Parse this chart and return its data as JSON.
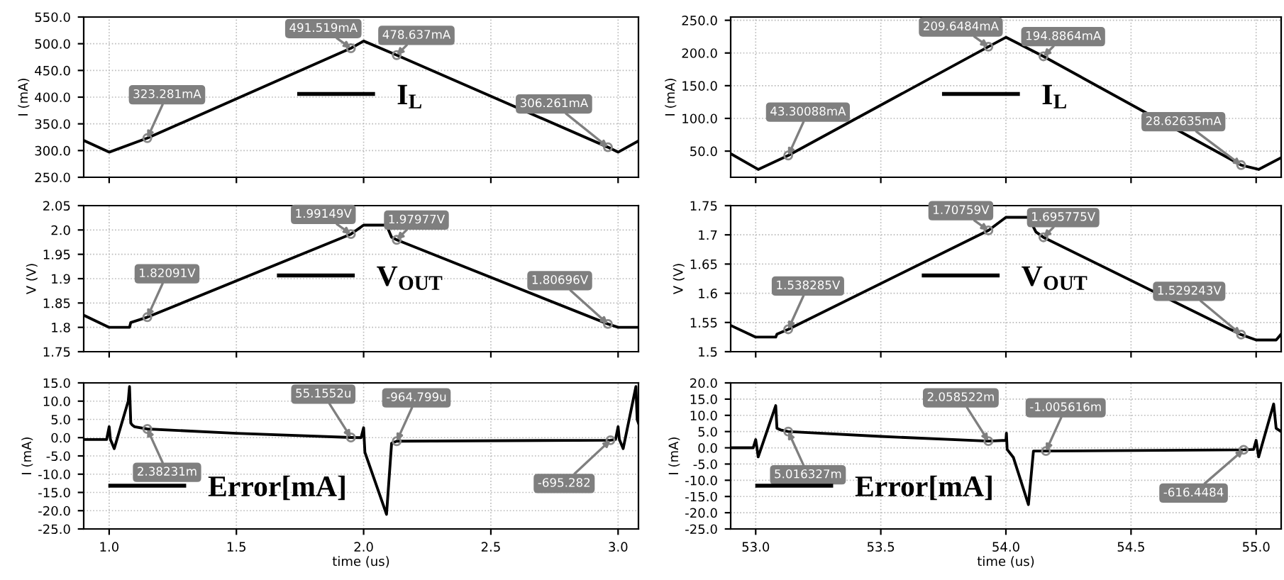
{
  "chart_data": [
    {
      "type": "line",
      "ylabel": "I (mA)",
      "legend": "center",
      "grid": true,
      "tick_labels": "y",
      "xlim": [
        0.9,
        3.08
      ],
      "xticks": [
        1.0,
        1.5,
        2.0,
        2.5,
        3.0
      ],
      "ylim": [
        250,
        550
      ],
      "yticks": [
        {
          "value": 250,
          "label": "250.0"
        },
        {
          "value": 300,
          "label": "300.0"
        },
        {
          "value": 350,
          "label": "350.0"
        },
        {
          "value": 400,
          "label": "400.0"
        },
        {
          "value": 450,
          "label": "450.0"
        },
        {
          "value": 500,
          "label": "500.0"
        },
        {
          "value": 550,
          "label": "550.0"
        }
      ],
      "x": [
        0.9,
        1.0,
        1.15,
        1.95,
        2.0,
        2.13,
        2.96,
        3.0,
        3.08
      ],
      "series": [
        {
          "name": "I$_{L}$",
          "color": "#000000",
          "values": [
            319,
            297,
            323.281,
            491.519,
            505,
            478.637,
            306.261,
            297,
            318
          ]
        }
      ],
      "annotations": [
        {
          "text": "323.281mA",
          "x": 1.15,
          "y": 323.281
        },
        {
          "text": "491.519mA",
          "x": 1.95,
          "y": 491.519
        },
        {
          "text": "478.637mA",
          "x": 2.13,
          "y": 478.637
        },
        {
          "text": "306.261mA",
          "x": 2.96,
          "y": 306.261
        }
      ]
    },
    {
      "type": "line",
      "ylabel": "I (mA)",
      "legend": "center",
      "grid": true,
      "tick_labels": "y",
      "xlim": [
        52.9,
        55.1
      ],
      "xticks": [
        53.0,
        53.5,
        54.0,
        54.5,
        55.0
      ],
      "ylim": [
        10,
        255
      ],
      "yticks": [
        {
          "value": 50,
          "label": "50.0"
        },
        {
          "value": 100,
          "label": "100.0"
        },
        {
          "value": 150,
          "label": "150.0"
        },
        {
          "value": 200,
          "label": "200.0"
        },
        {
          "value": 250,
          "label": "250.0"
        }
      ],
      "x": [
        52.9,
        53.01,
        53.13,
        53.93,
        54.0,
        54.15,
        54.94,
        55.01,
        55.1
      ],
      "series": [
        {
          "name": "I$_{L}$",
          "color": "#000000",
          "values": [
            46,
            22,
            43.30088,
            209.6484,
            224,
            194.8864,
            28.62635,
            22,
            40
          ]
        }
      ],
      "annotations": [
        {
          "text": "43.30088mA",
          "x": 53.13,
          "y": 43.30088
        },
        {
          "text": "209.6484mA",
          "x": 53.93,
          "y": 209.6484
        },
        {
          "text": "194.8864mA",
          "x": 54.15,
          "y": 194.8864
        },
        {
          "text": "28.62635mA",
          "x": 54.94,
          "y": 28.62635
        }
      ]
    },
    {
      "type": "line",
      "ylabel": "V (V)",
      "legend": "center",
      "grid": true,
      "tick_labels": "y",
      "xlim": [
        0.9,
        3.08
      ],
      "xticks": [
        1.0,
        1.5,
        2.0,
        2.5,
        3.0
      ],
      "ylim": [
        1.75,
        2.05
      ],
      "yticks": [
        1.75,
        1.8,
        1.85,
        1.9,
        1.95,
        {
          "value": 2.0,
          "label": "2.0"
        },
        2.05
      ],
      "x": [
        0.9,
        1.0,
        1.08,
        1.085,
        1.15,
        1.95,
        2.0,
        2.09,
        2.11,
        2.13,
        2.96,
        3.0,
        3.08
      ],
      "series": [
        {
          "name": "V$_{OUT}$",
          "color": "#000000",
          "values": [
            1.825,
            1.8,
            1.8,
            1.81,
            1.82091,
            1.99149,
            2.01,
            2.01,
            1.985,
            1.97977,
            1.80696,
            1.8,
            1.8
          ]
        }
      ],
      "annotations": [
        {
          "text": "1.82091V",
          "x": 1.15,
          "y": 1.82091
        },
        {
          "text": "1.99149V",
          "x": 1.95,
          "y": 1.99149
        },
        {
          "text": "1.97977V",
          "x": 2.13,
          "y": 1.97977
        },
        {
          "text": "1.80696V",
          "x": 2.96,
          "y": 1.80696
        }
      ]
    },
    {
      "type": "line",
      "ylabel": "V (V)",
      "legend": "center",
      "grid": true,
      "tick_labels": "y",
      "xlim": [
        52.9,
        55.1
      ],
      "xticks": [
        53.0,
        53.5,
        54.0,
        54.5,
        55.0
      ],
      "ylim": [
        1.5,
        1.75
      ],
      "yticks": [
        1.5,
        1.55,
        1.6,
        1.65,
        1.7,
        1.75
      ],
      "x": [
        52.9,
        53.0,
        53.08,
        53.085,
        53.13,
        53.93,
        54.0,
        54.09,
        54.12,
        54.15,
        54.94,
        55.0,
        55.08,
        55.1
      ],
      "series": [
        {
          "name": "V$_{OUT}$",
          "color": "#000000",
          "values": [
            1.545,
            1.525,
            1.525,
            1.53,
            1.538285,
            1.70759,
            1.73,
            1.73,
            1.705,
            1.695775,
            1.529243,
            1.52,
            1.52,
            1.53
          ]
        }
      ],
      "annotations": [
        {
          "text": "1.538285V",
          "x": 53.13,
          "y": 1.538285
        },
        {
          "text": "1.70759V",
          "x": 53.93,
          "y": 1.70759
        },
        {
          "text": "1.695775V",
          "x": 54.15,
          "y": 1.695775
        },
        {
          "text": "1.529243V",
          "x": 54.94,
          "y": 1.529243
        }
      ]
    },
    {
      "type": "line",
      "ylabel": "I (mA)",
      "xlabel": "time (us)",
      "legend": "lower left",
      "grid": true,
      "xlim": [
        0.9,
        3.08
      ],
      "xticks": [
        {
          "value": 1.0,
          "label": "1.0"
        },
        {
          "value": 1.5,
          "label": "1.5"
        },
        {
          "value": 2.0,
          "label": "2.0"
        },
        {
          "value": 2.5,
          "label": "2.5"
        },
        {
          "value": 3.0,
          "label": "3.0"
        }
      ],
      "ylim": [
        -25,
        15
      ],
      "yticks": [
        {
          "value": -25,
          "label": "-25.0"
        },
        {
          "value": -20,
          "label": "-20.0"
        },
        {
          "value": -15,
          "label": "-15.0"
        },
        {
          "value": -10,
          "label": "-10.0"
        },
        {
          "value": -5,
          "label": "-5.0"
        },
        {
          "value": 0,
          "label": "0.0"
        },
        {
          "value": 5,
          "label": "5.0"
        },
        {
          "value": 10,
          "label": "10.0"
        },
        {
          "value": 15,
          "label": "15.0"
        }
      ],
      "x": [
        0.9,
        0.99,
        1.0,
        1.005,
        1.02,
        1.075,
        1.08,
        1.085,
        1.09,
        1.1,
        1.15,
        1.5,
        1.95,
        1.99,
        2.0,
        2.005,
        2.09,
        2.11,
        2.13,
        2.97,
        2.99,
        3.0,
        3.005,
        3.02,
        3.07,
        3.075,
        3.08
      ],
      "series": [
        {
          "name": "Error[mA]",
          "color": "#000000",
          "values": [
            -0.5,
            -0.5,
            3,
            -0.5,
            -3,
            10,
            14,
            4,
            3.5,
            3,
            2.38231,
            1.2,
            0.0551552,
            0.0,
            2.7,
            -4,
            -21,
            -1.5,
            -0.964799,
            -0.695282,
            -0.5,
            3,
            -0.5,
            -3,
            14,
            5,
            4
          ]
        }
      ],
      "annotations": [
        {
          "text": "2.38231m",
          "x": 1.15,
          "y": 2.38231
        },
        {
          "text": "55.1552u",
          "x": 1.95,
          "y": 0.0551552
        },
        {
          "text": "-964.799u",
          "x": 2.13,
          "y": -0.964799
        },
        {
          "text": "-695.282",
          "x": 2.97,
          "y": -0.695282
        }
      ]
    },
    {
      "type": "line",
      "ylabel": "I (mA)",
      "xlabel": "time (us)",
      "legend": "lower left",
      "grid": true,
      "xlim": [
        52.9,
        55.1
      ],
      "xticks": [
        {
          "value": 53.0,
          "label": "53.0"
        },
        {
          "value": 53.5,
          "label": "53.5"
        },
        {
          "value": 54.0,
          "label": "54.0"
        },
        {
          "value": 54.5,
          "label": "54.5"
        },
        {
          "value": 55.0,
          "label": "55.0"
        }
      ],
      "ylim": [
        -25,
        20
      ],
      "yticks": [
        {
          "value": -25,
          "label": "-25.0"
        },
        {
          "value": -20,
          "label": "-20.0"
        },
        {
          "value": -15,
          "label": "-15.0"
        },
        {
          "value": -10,
          "label": "-10.0"
        },
        {
          "value": -5,
          "label": "-5.0"
        },
        {
          "value": 0,
          "label": "0.0"
        },
        {
          "value": 5,
          "label": "5.0"
        },
        {
          "value": 10,
          "label": "10.0"
        },
        {
          "value": 15,
          "label": "15.0"
        },
        {
          "value": 20,
          "label": "20.0"
        }
      ],
      "x": [
        52.9,
        52.99,
        53.0,
        53.005,
        53.01,
        53.08,
        53.085,
        53.1,
        53.13,
        53.5,
        53.93,
        54.0,
        54.002,
        54.005,
        54.03,
        54.09,
        54.11,
        54.16,
        54.95,
        54.99,
        55.0,
        55.01,
        55.07,
        55.08,
        55.1
      ],
      "series": [
        {
          "name": "Error[mA]",
          "color": "#000000",
          "values": [
            0,
            0,
            2.5,
            0,
            -2.8,
            13,
            6,
            5.5,
            5.016327,
            3.5,
            2.058522,
            2.3,
            4.5,
            -0.5,
            -3,
            -17.5,
            -1,
            -1.005616,
            -0.616448,
            -0.5,
            2.3,
            -2.8,
            13.5,
            6,
            5
          ]
        }
      ],
      "annotations": [
        {
          "text": "5.016327m",
          "x": 53.13,
          "y": 5.016327
        },
        {
          "text": "2.058522m",
          "x": 53.93,
          "y": 2.058522
        },
        {
          "text": "-1.005616m",
          "x": 54.16,
          "y": -1.005616
        },
        {
          "text": "-616.4484",
          "x": 54.95,
          "y": -0.616448
        }
      ]
    }
  ]
}
